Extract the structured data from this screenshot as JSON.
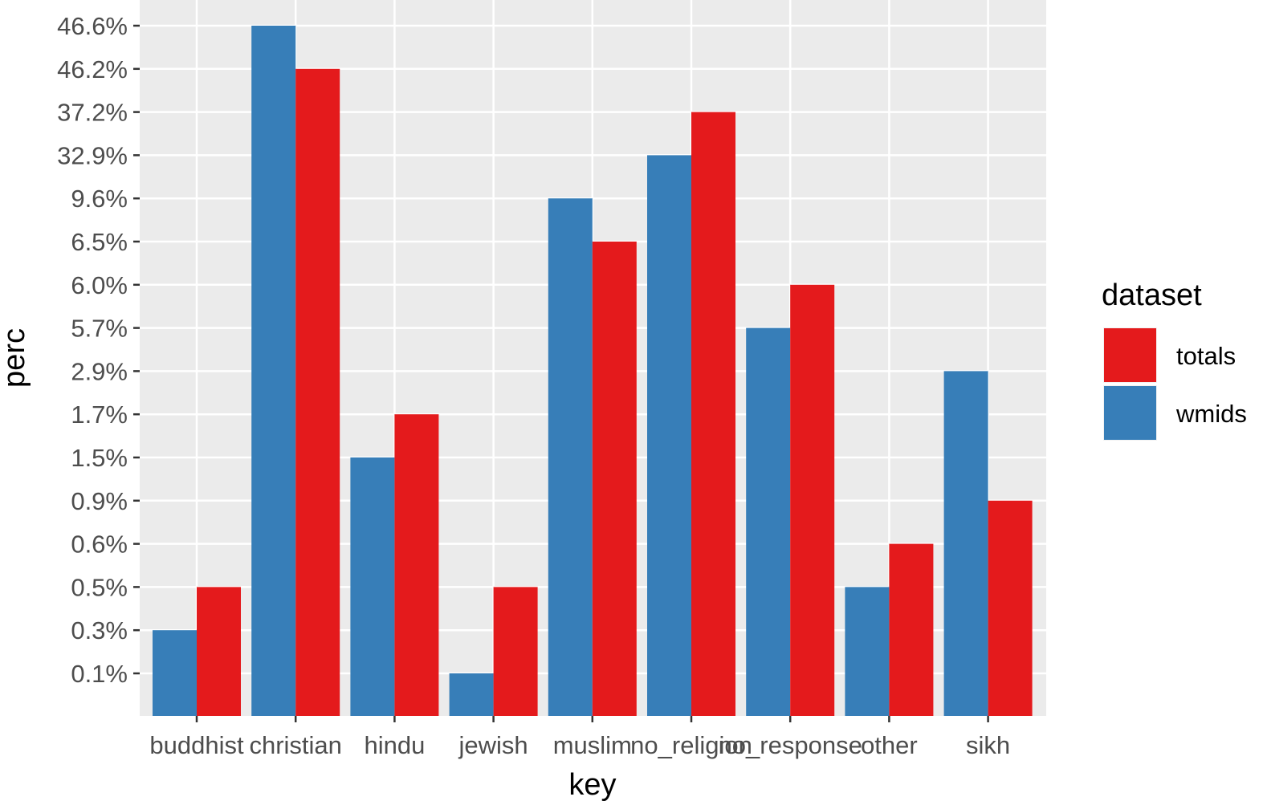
{
  "chart_data": {
    "type": "bar",
    "xlabel": "key",
    "ylabel": "perc",
    "categories": [
      "buddhist",
      "christian",
      "hindu",
      "jewish",
      "muslim",
      "no_religion",
      "no_response",
      "other",
      "sikh"
    ],
    "y_ticks": [
      "0.1%",
      "0.3%",
      "0.5%",
      "0.6%",
      "0.9%",
      "1.5%",
      "1.7%",
      "2.9%",
      "5.7%",
      "6.0%",
      "6.5%",
      "9.6%",
      "32.9%",
      "37.2%",
      "46.2%",
      "46.6%"
    ],
    "series": [
      {
        "name": "wmids",
        "color": "#377eb8",
        "values": [
          "0.3%",
          "46.6%",
          "1.5%",
          "0.1%",
          "9.6%",
          "32.9%",
          "5.7%",
          "0.5%",
          "2.9%"
        ]
      },
      {
        "name": "totals",
        "color": "#e41a1c",
        "values": [
          "0.5%",
          "46.2%",
          "1.7%",
          "0.5%",
          "6.5%",
          "37.2%",
          "6.0%",
          "0.6%",
          "0.9%"
        ]
      }
    ],
    "legend": {
      "title": "dataset",
      "position": "right",
      "entries": [
        {
          "name": "totals",
          "color": "#e41a1c"
        },
        {
          "name": "wmids",
          "color": "#377eb8"
        }
      ]
    },
    "panel_background": "#ebebeb",
    "grid_color": "#ffffff",
    "grid": true
  }
}
